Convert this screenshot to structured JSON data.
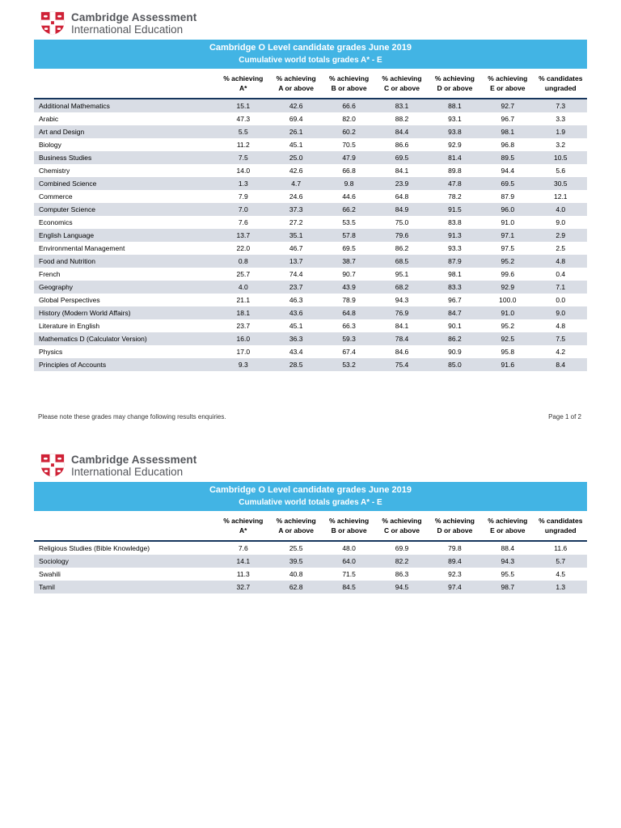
{
  "logo": {
    "line1": "Cambridge Assessment",
    "line2": "International Education",
    "shield_icon": "cambridge-shield-icon"
  },
  "header": {
    "title": "Cambridge O Level candidate grades June 2019",
    "subtitle": "Cumulative world totals grades A* - E"
  },
  "colors": {
    "banner_bg": "#42b4e4",
    "row_shade": "#d9dde5",
    "divider": "#17365d",
    "logo_red": "#cf2136",
    "logo_text": "#54565b"
  },
  "columns": [
    {
      "line1": "% achieving",
      "line2": "A*"
    },
    {
      "line1": "% achieving",
      "line2": "A or above"
    },
    {
      "line1": "% achieving",
      "line2": "B or above"
    },
    {
      "line1": "% achieving",
      "line2": "C or above"
    },
    {
      "line1": "% achieving",
      "line2": "D or above"
    },
    {
      "line1": "% achieving",
      "line2": "E or above"
    },
    {
      "line1": "% candidates",
      "line2": "ungraded"
    }
  ],
  "page1": {
    "rows": [
      {
        "subject": "Additional Mathematics",
        "values": [
          "15.1",
          "42.6",
          "66.6",
          "83.1",
          "88.1",
          "92.7",
          "7.3"
        ]
      },
      {
        "subject": "Arabic",
        "values": [
          "47.3",
          "69.4",
          "82.0",
          "88.2",
          "93.1",
          "96.7",
          "3.3"
        ]
      },
      {
        "subject": "Art and Design",
        "values": [
          "5.5",
          "26.1",
          "60.2",
          "84.4",
          "93.8",
          "98.1",
          "1.9"
        ]
      },
      {
        "subject": "Biology",
        "values": [
          "11.2",
          "45.1",
          "70.5",
          "86.6",
          "92.9",
          "96.8",
          "3.2"
        ]
      },
      {
        "subject": "Business Studies",
        "values": [
          "7.5",
          "25.0",
          "47.9",
          "69.5",
          "81.4",
          "89.5",
          "10.5"
        ]
      },
      {
        "subject": "Chemistry",
        "values": [
          "14.0",
          "42.6",
          "66.8",
          "84.1",
          "89.8",
          "94.4",
          "5.6"
        ]
      },
      {
        "subject": "Combined Science",
        "values": [
          "1.3",
          "4.7",
          "9.8",
          "23.9",
          "47.8",
          "69.5",
          "30.5"
        ]
      },
      {
        "subject": "Commerce",
        "values": [
          "7.9",
          "24.6",
          "44.6",
          "64.8",
          "78.2",
          "87.9",
          "12.1"
        ]
      },
      {
        "subject": "Computer Science",
        "values": [
          "7.0",
          "37.3",
          "66.2",
          "84.9",
          "91.5",
          "96.0",
          "4.0"
        ]
      },
      {
        "subject": "Economics",
        "values": [
          "7.6",
          "27.2",
          "53.5",
          "75.0",
          "83.8",
          "91.0",
          "9.0"
        ]
      },
      {
        "subject": "English Language",
        "values": [
          "13.7",
          "35.1",
          "57.8",
          "79.6",
          "91.3",
          "97.1",
          "2.9"
        ]
      },
      {
        "subject": "Environmental Management",
        "values": [
          "22.0",
          "46.7",
          "69.5",
          "86.2",
          "93.3",
          "97.5",
          "2.5"
        ]
      },
      {
        "subject": "Food and Nutrition",
        "values": [
          "0.8",
          "13.7",
          "38.7",
          "68.5",
          "87.9",
          "95.2",
          "4.8"
        ]
      },
      {
        "subject": "French",
        "values": [
          "25.7",
          "74.4",
          "90.7",
          "95.1",
          "98.1",
          "99.6",
          "0.4"
        ]
      },
      {
        "subject": "Geography",
        "values": [
          "4.0",
          "23.7",
          "43.9",
          "68.2",
          "83.3",
          "92.9",
          "7.1"
        ]
      },
      {
        "subject": "Global Perspectives",
        "values": [
          "21.1",
          "46.3",
          "78.9",
          "94.3",
          "96.7",
          "100.0",
          "0.0"
        ]
      },
      {
        "subject": "History (Modern World Affairs)",
        "values": [
          "18.1",
          "43.6",
          "64.8",
          "76.9",
          "84.7",
          "91.0",
          "9.0"
        ]
      },
      {
        "subject": "Literature in English",
        "values": [
          "23.7",
          "45.1",
          "66.3",
          "84.1",
          "90.1",
          "95.2",
          "4.8"
        ]
      },
      {
        "subject": "Mathematics D (Calculator Version)",
        "values": [
          "16.0",
          "36.3",
          "59.3",
          "78.4",
          "86.2",
          "92.5",
          "7.5"
        ]
      },
      {
        "subject": "Physics",
        "values": [
          "17.0",
          "43.4",
          "67.4",
          "84.6",
          "90.9",
          "95.8",
          "4.2"
        ]
      },
      {
        "subject": "Principles of Accounts",
        "values": [
          "9.3",
          "28.5",
          "53.2",
          "75.4",
          "85.0",
          "91.6",
          "8.4"
        ]
      }
    ],
    "footer_note": "Please note these grades may change following results enquiries.",
    "page_label": "Page 1 of 2"
  },
  "page2": {
    "rows": [
      {
        "subject": "Religious Studies (Bible Knowledge)",
        "values": [
          "7.6",
          "25.5",
          "48.0",
          "69.9",
          "79.8",
          "88.4",
          "11.6"
        ]
      },
      {
        "subject": "Sociology",
        "values": [
          "14.1",
          "39.5",
          "64.0",
          "82.2",
          "89.4",
          "94.3",
          "5.7"
        ]
      },
      {
        "subject": "Swahili",
        "values": [
          "11.3",
          "40.8",
          "71.5",
          "86.3",
          "92.3",
          "95.5",
          "4.5"
        ]
      },
      {
        "subject": "Tamil",
        "values": [
          "32.7",
          "62.8",
          "84.5",
          "94.5",
          "97.4",
          "98.7",
          "1.3"
        ]
      }
    ]
  }
}
